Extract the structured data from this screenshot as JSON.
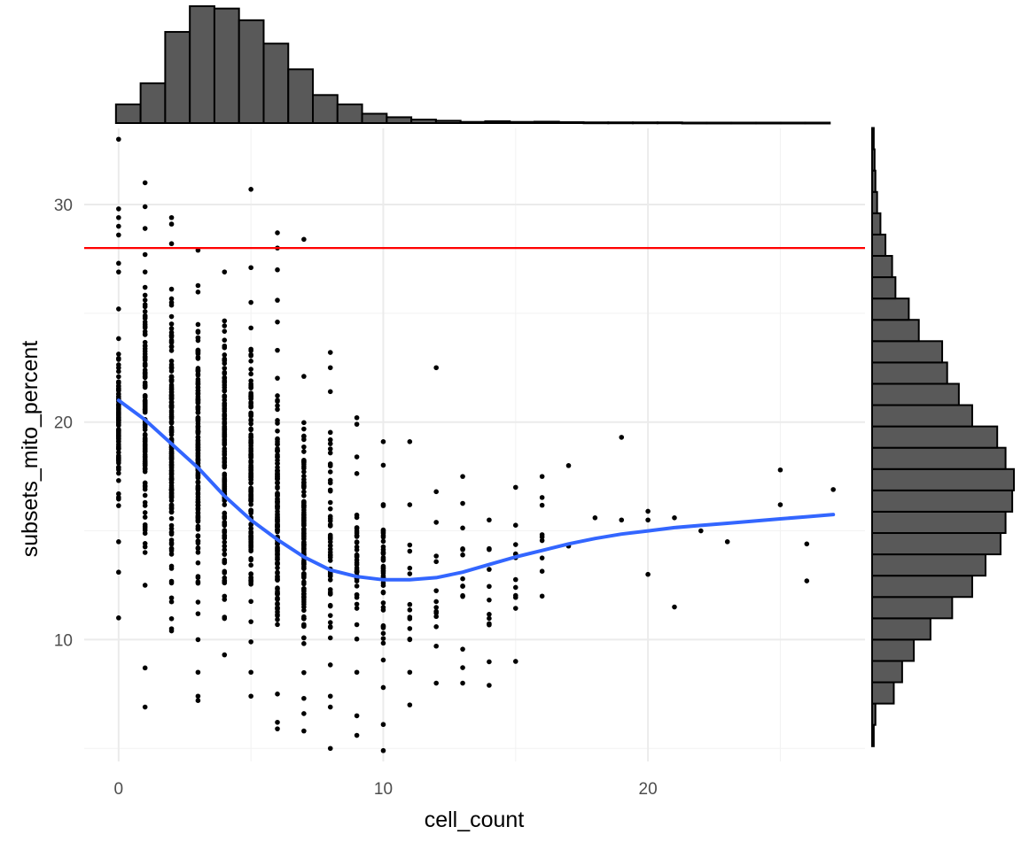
{
  "chart_data": {
    "type": "scatter",
    "xlabel": "cell_count",
    "ylabel": "subsets_mito_percent",
    "xlim": [
      -1.3,
      28.2
    ],
    "ylim": [
      4.4,
      33.5
    ],
    "x_ticks": [
      0,
      10,
      20
    ],
    "x_tick_labels": [
      "0",
      "10",
      "20"
    ],
    "y_ticks": [
      10,
      20,
      30
    ],
    "y_tick_labels": [
      "10",
      "20",
      "30"
    ],
    "x_minor_ticks": [
      5,
      15,
      25
    ],
    "y_minor_ticks": [
      5,
      15,
      25
    ],
    "grid": true,
    "theme": "minimal",
    "threshold_line": {
      "orientation": "horizontal",
      "y": 28.0,
      "color": "#ff0000"
    },
    "smooth_line": {
      "color": "#3366ff",
      "x": [
        0,
        1,
        2,
        3,
        4,
        5,
        6,
        7,
        8,
        9,
        10,
        11,
        12,
        13,
        14,
        15,
        16,
        17,
        18,
        19,
        20,
        21,
        22,
        23,
        24,
        25,
        26,
        27
      ],
      "y": [
        21.0,
        20.1,
        19.0,
        17.9,
        16.6,
        15.5,
        14.6,
        13.8,
        13.2,
        12.9,
        12.75,
        12.75,
        12.85,
        13.1,
        13.45,
        13.8,
        14.1,
        14.4,
        14.65,
        14.85,
        15.0,
        15.15,
        15.25,
        15.35,
        15.45,
        15.55,
        15.65,
        15.75
      ]
    },
    "points_by_x": [
      {
        "x": 0,
        "ymin": 14.5,
        "ymax": 25.2,
        "extra": [
          33.0,
          29.8,
          29.4,
          29.0,
          28.6,
          27.3,
          26.9,
          13.1,
          11.0
        ]
      },
      {
        "x": 1,
        "ymin": 12.5,
        "ymax": 27.7,
        "extra": [
          31.0,
          29.9,
          28.9,
          8.7,
          6.9
        ]
      },
      {
        "x": 2,
        "ymin": 10.5,
        "ymax": 28.2,
        "extra": [
          29.4,
          29.1,
          10.4
        ]
      },
      {
        "x": 3,
        "ymin": 10.0,
        "ymax": 27.9,
        "extra": [
          8.5,
          7.4,
          7.2
        ]
      },
      {
        "x": 4,
        "ymin": 9.3,
        "ymax": 26.9,
        "extra": []
      },
      {
        "x": 5,
        "ymin": 8.5,
        "ymax": 25.5,
        "extra": [
          30.7,
          27.1,
          7.4
        ]
      },
      {
        "x": 6,
        "ymin": 7.5,
        "ymax": 23.3,
        "extra": [
          28.7,
          28.0,
          27.0,
          25.6,
          24.6,
          6.2,
          5.9
        ]
      },
      {
        "x": 7,
        "ymin": 7.3,
        "ymax": 22.1,
        "extra": [
          28.4,
          6.6,
          5.8
        ]
      },
      {
        "x": 8,
        "ymin": 7.4,
        "ymax": 21.4,
        "extra": [
          23.2,
          22.5,
          6.9,
          5.0
        ]
      },
      {
        "x": 9,
        "ymin": 8.5,
        "ymax": 18.4,
        "extra": [
          20.2,
          19.9,
          6.5,
          5.6
        ]
      },
      {
        "x": 10,
        "ymin": 7.8,
        "ymax": 19.1,
        "extra": [
          6.1,
          4.9
        ]
      },
      {
        "x": 11,
        "ymin": 8.5,
        "ymax": 16.2,
        "extra": [
          19.1,
          10.0,
          7.0
        ]
      },
      {
        "x": 12,
        "ymin": 8.0,
        "ymax": 16.8,
        "extra": [
          22.5
        ]
      },
      {
        "x": 13,
        "ymin": 8.0,
        "ymax": 17.5,
        "extra": []
      },
      {
        "x": 14,
        "ymin": 7.9,
        "ymax": 15.5,
        "extra": []
      },
      {
        "x": 15,
        "ymin": 9.0,
        "ymax": 17.0,
        "extra": []
      },
      {
        "x": 16,
        "ymin": 12.0,
        "ymax": 17.5,
        "extra": []
      }
    ],
    "scattered_points": [
      {
        "x": 17,
        "y": 18.0
      },
      {
        "x": 17,
        "y": 14.3
      },
      {
        "x": 18,
        "y": 15.6
      },
      {
        "x": 19,
        "y": 19.3
      },
      {
        "x": 19,
        "y": 15.5
      },
      {
        "x": 20,
        "y": 15.9
      },
      {
        "x": 20,
        "y": 15.5
      },
      {
        "x": 20,
        "y": 13.0
      },
      {
        "x": 21,
        "y": 15.6
      },
      {
        "x": 21,
        "y": 11.5
      },
      {
        "x": 22,
        "y": 15.0
      },
      {
        "x": 23,
        "y": 14.5
      },
      {
        "x": 25,
        "y": 17.8
      },
      {
        "x": 25,
        "y": 16.2
      },
      {
        "x": 26,
        "y": 14.4
      },
      {
        "x": 26,
        "y": 12.7
      },
      {
        "x": 27,
        "y": 16.9
      }
    ],
    "marginal_x_histogram": {
      "bin_width": 0.93,
      "start": -0.1,
      "counts": [
        8,
        17,
        39,
        50,
        49,
        44,
        34,
        23,
        12,
        8,
        4,
        2.5,
        1.5,
        1,
        0.5,
        0.8,
        0.5,
        0.6,
        0.4,
        0.3,
        0.3,
        0.3,
        0.3,
        0.2,
        0.2,
        0.2,
        0.2,
        0.2,
        0.2
      ]
    },
    "marginal_y_histogram": {
      "bin_start": 5.1,
      "bin_width": 0.98,
      "counts": [
        1,
        2,
        13,
        18,
        25,
        35,
        48,
        60,
        68,
        77,
        80,
        84,
        85,
        80,
        75,
        60,
        52,
        45,
        42,
        28,
        22,
        14,
        12,
        8,
        5,
        3,
        2,
        1.5,
        1
      ]
    }
  }
}
